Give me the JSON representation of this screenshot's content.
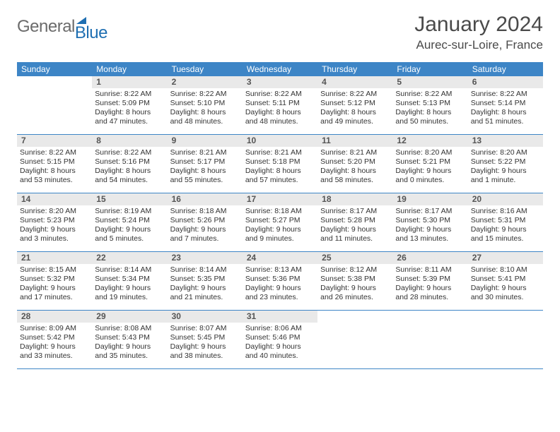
{
  "brand": {
    "general": "General",
    "blue": "Blue"
  },
  "title": "January 2024",
  "location": "Aurec-sur-Loire, France",
  "colors": {
    "header_bg": "#3d85c6",
    "daynum_bg": "#e9e9e9",
    "text": "#333333",
    "brand_gray": "#6b6b6b",
    "brand_blue": "#1f6fb2"
  },
  "weekdays": [
    "Sunday",
    "Monday",
    "Tuesday",
    "Wednesday",
    "Thursday",
    "Friday",
    "Saturday"
  ],
  "start_offset": 1,
  "days": [
    {
      "n": "1",
      "sunrise": "Sunrise: 8:22 AM",
      "sunset": "Sunset: 5:09 PM",
      "daylight": "Daylight: 8 hours and 47 minutes."
    },
    {
      "n": "2",
      "sunrise": "Sunrise: 8:22 AM",
      "sunset": "Sunset: 5:10 PM",
      "daylight": "Daylight: 8 hours and 48 minutes."
    },
    {
      "n": "3",
      "sunrise": "Sunrise: 8:22 AM",
      "sunset": "Sunset: 5:11 PM",
      "daylight": "Daylight: 8 hours and 48 minutes."
    },
    {
      "n": "4",
      "sunrise": "Sunrise: 8:22 AM",
      "sunset": "Sunset: 5:12 PM",
      "daylight": "Daylight: 8 hours and 49 minutes."
    },
    {
      "n": "5",
      "sunrise": "Sunrise: 8:22 AM",
      "sunset": "Sunset: 5:13 PM",
      "daylight": "Daylight: 8 hours and 50 minutes."
    },
    {
      "n": "6",
      "sunrise": "Sunrise: 8:22 AM",
      "sunset": "Sunset: 5:14 PM",
      "daylight": "Daylight: 8 hours and 51 minutes."
    },
    {
      "n": "7",
      "sunrise": "Sunrise: 8:22 AM",
      "sunset": "Sunset: 5:15 PM",
      "daylight": "Daylight: 8 hours and 53 minutes."
    },
    {
      "n": "8",
      "sunrise": "Sunrise: 8:22 AM",
      "sunset": "Sunset: 5:16 PM",
      "daylight": "Daylight: 8 hours and 54 minutes."
    },
    {
      "n": "9",
      "sunrise": "Sunrise: 8:21 AM",
      "sunset": "Sunset: 5:17 PM",
      "daylight": "Daylight: 8 hours and 55 minutes."
    },
    {
      "n": "10",
      "sunrise": "Sunrise: 8:21 AM",
      "sunset": "Sunset: 5:18 PM",
      "daylight": "Daylight: 8 hours and 57 minutes."
    },
    {
      "n": "11",
      "sunrise": "Sunrise: 8:21 AM",
      "sunset": "Sunset: 5:20 PM",
      "daylight": "Daylight: 8 hours and 58 minutes."
    },
    {
      "n": "12",
      "sunrise": "Sunrise: 8:20 AM",
      "sunset": "Sunset: 5:21 PM",
      "daylight": "Daylight: 9 hours and 0 minutes."
    },
    {
      "n": "13",
      "sunrise": "Sunrise: 8:20 AM",
      "sunset": "Sunset: 5:22 PM",
      "daylight": "Daylight: 9 hours and 1 minute."
    },
    {
      "n": "14",
      "sunrise": "Sunrise: 8:20 AM",
      "sunset": "Sunset: 5:23 PM",
      "daylight": "Daylight: 9 hours and 3 minutes."
    },
    {
      "n": "15",
      "sunrise": "Sunrise: 8:19 AM",
      "sunset": "Sunset: 5:24 PM",
      "daylight": "Daylight: 9 hours and 5 minutes."
    },
    {
      "n": "16",
      "sunrise": "Sunrise: 8:18 AM",
      "sunset": "Sunset: 5:26 PM",
      "daylight": "Daylight: 9 hours and 7 minutes."
    },
    {
      "n": "17",
      "sunrise": "Sunrise: 8:18 AM",
      "sunset": "Sunset: 5:27 PM",
      "daylight": "Daylight: 9 hours and 9 minutes."
    },
    {
      "n": "18",
      "sunrise": "Sunrise: 8:17 AM",
      "sunset": "Sunset: 5:28 PM",
      "daylight": "Daylight: 9 hours and 11 minutes."
    },
    {
      "n": "19",
      "sunrise": "Sunrise: 8:17 AM",
      "sunset": "Sunset: 5:30 PM",
      "daylight": "Daylight: 9 hours and 13 minutes."
    },
    {
      "n": "20",
      "sunrise": "Sunrise: 8:16 AM",
      "sunset": "Sunset: 5:31 PM",
      "daylight": "Daylight: 9 hours and 15 minutes."
    },
    {
      "n": "21",
      "sunrise": "Sunrise: 8:15 AM",
      "sunset": "Sunset: 5:32 PM",
      "daylight": "Daylight: 9 hours and 17 minutes."
    },
    {
      "n": "22",
      "sunrise": "Sunrise: 8:14 AM",
      "sunset": "Sunset: 5:34 PM",
      "daylight": "Daylight: 9 hours and 19 minutes."
    },
    {
      "n": "23",
      "sunrise": "Sunrise: 8:14 AM",
      "sunset": "Sunset: 5:35 PM",
      "daylight": "Daylight: 9 hours and 21 minutes."
    },
    {
      "n": "24",
      "sunrise": "Sunrise: 8:13 AM",
      "sunset": "Sunset: 5:36 PM",
      "daylight": "Daylight: 9 hours and 23 minutes."
    },
    {
      "n": "25",
      "sunrise": "Sunrise: 8:12 AM",
      "sunset": "Sunset: 5:38 PM",
      "daylight": "Daylight: 9 hours and 26 minutes."
    },
    {
      "n": "26",
      "sunrise": "Sunrise: 8:11 AM",
      "sunset": "Sunset: 5:39 PM",
      "daylight": "Daylight: 9 hours and 28 minutes."
    },
    {
      "n": "27",
      "sunrise": "Sunrise: 8:10 AM",
      "sunset": "Sunset: 5:41 PM",
      "daylight": "Daylight: 9 hours and 30 minutes."
    },
    {
      "n": "28",
      "sunrise": "Sunrise: 8:09 AM",
      "sunset": "Sunset: 5:42 PM",
      "daylight": "Daylight: 9 hours and 33 minutes."
    },
    {
      "n": "29",
      "sunrise": "Sunrise: 8:08 AM",
      "sunset": "Sunset: 5:43 PM",
      "daylight": "Daylight: 9 hours and 35 minutes."
    },
    {
      "n": "30",
      "sunrise": "Sunrise: 8:07 AM",
      "sunset": "Sunset: 5:45 PM",
      "daylight": "Daylight: 9 hours and 38 minutes."
    },
    {
      "n": "31",
      "sunrise": "Sunrise: 8:06 AM",
      "sunset": "Sunset: 5:46 PM",
      "daylight": "Daylight: 9 hours and 40 minutes."
    }
  ]
}
